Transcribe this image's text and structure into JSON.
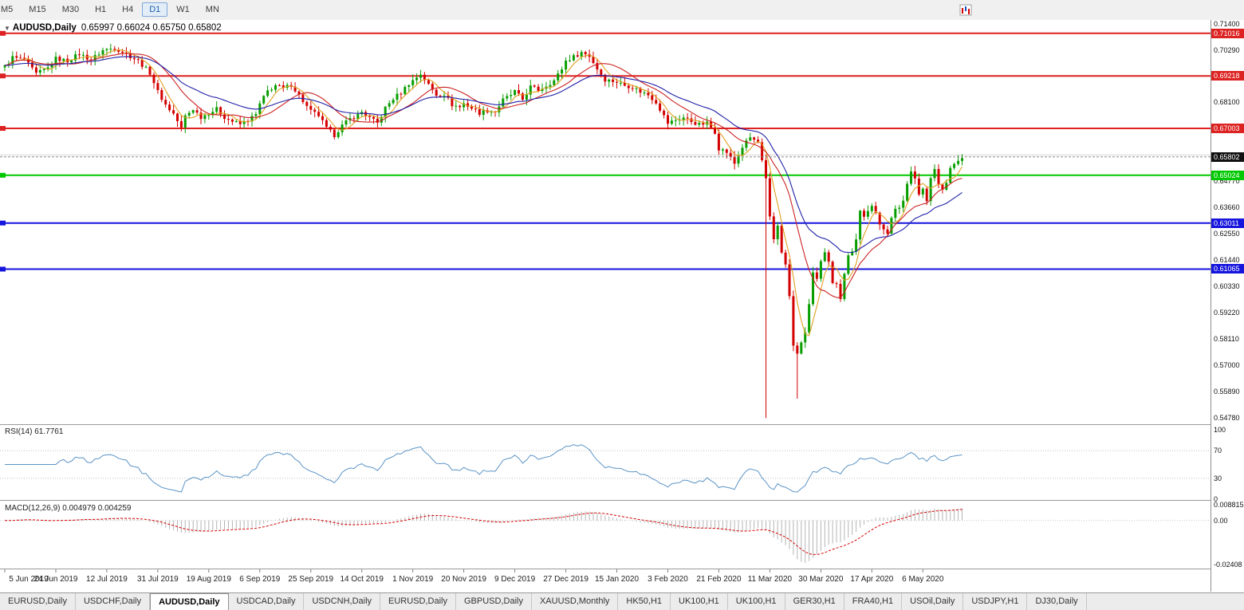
{
  "toolbar": {
    "timeframes": [
      "M5",
      "M15",
      "M30",
      "H1",
      "H4",
      "D1",
      "W1",
      "MN"
    ],
    "selected": "D1"
  },
  "chart": {
    "dropdown_icon": "▼",
    "title": "AUDUSD,Daily",
    "ohlc": "0.65997 0.66024 0.65750 0.65802"
  },
  "rsi_panel": {
    "label": "RSI(14) 61.7761",
    "axis": [
      {
        "v": 100,
        "label": "100"
      },
      {
        "v": 70,
        "label": "70"
      },
      {
        "v": 30,
        "label": "30"
      },
      {
        "v": 0,
        "label": "0"
      }
    ]
  },
  "macd_panel": {
    "label": "MACD(12,26,9) 0.004979 0.004259",
    "axis": [
      {
        "v": 0.008815,
        "label": "0.008815"
      },
      {
        "v": 0,
        "label": "0.00"
      },
      {
        "v": -0.02408,
        "label": "-0.02408"
      }
    ]
  },
  "tabs": {
    "items": [
      "EURUSD,Daily",
      "USDCHF,Daily",
      "AUDUSD,Daily",
      "USDCAD,Daily",
      "USDCNH,Daily",
      "EURUSD,Daily",
      "GBPUSD,Daily",
      "XAUUSD,Monthly",
      "HK50,H1",
      "UK100,H1",
      "UK100,H1",
      "GER30,H1",
      "FRA40,H1",
      "USOil,Daily",
      "USDJPY,H1",
      "DJ30,Daily"
    ],
    "selected_index": 2
  },
  "chart_data": {
    "type": "candlestick",
    "symbol": "AUDUSD",
    "timeframe": "Daily",
    "ylim": [
      0.5452,
      0.7158
    ],
    "bars": 245,
    "colors": {
      "bull": "#089e00",
      "bear": "#d40000",
      "rsi_line": "#5b93c5",
      "macd_hist": "#b4b4b4",
      "macd_signal": "#d40000",
      "bid_line": "#8c8c8c",
      "grid": "#d6d6d6"
    },
    "price_axis_labels": [
      {
        "v": 0.714,
        "label": "0.71400"
      },
      {
        "v": 0.7029,
        "label": "0.70290"
      },
      {
        "v": 0.681,
        "label": "0.68100"
      },
      {
        "v": 0.6477,
        "label": "0.64770"
      },
      {
        "v": 0.6366,
        "label": "0.63660"
      },
      {
        "v": 0.6255,
        "label": "0.62550"
      },
      {
        "v": 0.6144,
        "label": "0.61440"
      },
      {
        "v": 0.6033,
        "label": "0.60330"
      },
      {
        "v": 0.5922,
        "label": "0.59220"
      },
      {
        "v": 0.5811,
        "label": "0.58110"
      },
      {
        "v": 0.57,
        "label": "0.57000"
      },
      {
        "v": 0.5589,
        "label": "0.55890"
      },
      {
        "v": 0.5478,
        "label": "0.54780"
      }
    ],
    "hlines": [
      {
        "v": 0.71016,
        "label": "0.71016",
        "color": "#dd2222"
      },
      {
        "v": 0.69218,
        "label": "0.69218",
        "color": "#dd2222"
      },
      {
        "v": 0.67003,
        "label": "0.67003",
        "color": "#dd2222"
      },
      {
        "v": 0.65024,
        "label": "0.65024",
        "color": "#00c800"
      },
      {
        "v": 0.63011,
        "label": "0.63011",
        "color": "#1515dd"
      },
      {
        "v": 0.61065,
        "label": "0.61065",
        "color": "#1515dd"
      }
    ],
    "bid_line": {
      "v": 0.65802,
      "label": "0.65802"
    },
    "gridline": 0.6588,
    "x_labels": [
      {
        "i": 0,
        "label": "5 Jun 2019"
      },
      {
        "i": 13,
        "label": "24 Jun 2019"
      },
      {
        "i": 26,
        "label": "12 Jul 2019"
      },
      {
        "i": 39,
        "label": "31 Jul 2019"
      },
      {
        "i": 52,
        "label": "19 Aug 2019"
      },
      {
        "i": 65,
        "label": "6 Sep 2019"
      },
      {
        "i": 78,
        "label": "25 Sep 2019"
      },
      {
        "i": 91,
        "label": "14 Oct 2019"
      },
      {
        "i": 104,
        "label": "1 Nov 2019"
      },
      {
        "i": 117,
        "label": "20 Nov 2019"
      },
      {
        "i": 130,
        "label": "9 Dec 2019"
      },
      {
        "i": 143,
        "label": "27 Dec 2019"
      },
      {
        "i": 156,
        "label": "15 Jan 2020"
      },
      {
        "i": 169,
        "label": "3 Feb 2020"
      },
      {
        "i": 182,
        "label": "21 Feb 2020"
      },
      {
        "i": 195,
        "label": "11 Mar 2020"
      },
      {
        "i": 208,
        "label": "30 Mar 2020"
      },
      {
        "i": 221,
        "label": "17 Apr 2020"
      },
      {
        "i": 234,
        "label": "6 May 2020"
      }
    ],
    "close_anchors": [
      [
        0,
        0.696
      ],
      [
        2,
        0.7
      ],
      [
        5,
        0.699
      ],
      [
        8,
        0.693
      ],
      [
        11,
        0.6955
      ],
      [
        13,
        0.6995
      ],
      [
        16,
        0.6985
      ],
      [
        19,
        0.7015
      ],
      [
        22,
        0.699
      ],
      [
        25,
        0.703
      ],
      [
        28,
        0.704
      ],
      [
        31,
        0.7015
      ],
      [
        34,
        0.6985
      ],
      [
        37,
        0.6935
      ],
      [
        39,
        0.6855
      ],
      [
        41,
        0.68
      ],
      [
        43,
        0.6762
      ],
      [
        45,
        0.67
      ],
      [
        46,
        0.6752
      ],
      [
        48,
        0.6782
      ],
      [
        50,
        0.6748
      ],
      [
        52,
        0.6765
      ],
      [
        54,
        0.6782
      ],
      [
        56,
        0.6748
      ],
      [
        58,
        0.673
      ],
      [
        60,
        0.6718
      ],
      [
        62,
        0.6736
      ],
      [
        64,
        0.6758
      ],
      [
        65,
        0.6802
      ],
      [
        67,
        0.6858
      ],
      [
        69,
        0.6882
      ],
      [
        71,
        0.6868
      ],
      [
        73,
        0.6885
      ],
      [
        75,
        0.684
      ],
      [
        77,
        0.6792
      ],
      [
        78,
        0.6772
      ],
      [
        80,
        0.6755
      ],
      [
        82,
        0.67
      ],
      [
        84,
        0.6672
      ],
      [
        86,
        0.6712
      ],
      [
        88,
        0.674
      ],
      [
        90,
        0.6756
      ],
      [
        91,
        0.677
      ],
      [
        93,
        0.6744
      ],
      [
        95,
        0.6722
      ],
      [
        97,
        0.6786
      ],
      [
        99,
        0.6826
      ],
      [
        101,
        0.6852
      ],
      [
        103,
        0.689
      ],
      [
        104,
        0.6902
      ],
      [
        106,
        0.693
      ],
      [
        108,
        0.6884
      ],
      [
        110,
        0.6842
      ],
      [
        112,
        0.6846
      ],
      [
        114,
        0.68
      ],
      [
        116,
        0.679
      ],
      [
        117,
        0.6806
      ],
      [
        119,
        0.6786
      ],
      [
        121,
        0.6766
      ],
      [
        123,
        0.6776
      ],
      [
        125,
        0.677
      ],
      [
        127,
        0.682
      ],
      [
        129,
        0.6842
      ],
      [
        130,
        0.6856
      ],
      [
        132,
        0.6822
      ],
      [
        134,
        0.6876
      ],
      [
        136,
        0.6862
      ],
      [
        138,
        0.6882
      ],
      [
        140,
        0.6902
      ],
      [
        142,
        0.6952
      ],
      [
        143,
        0.6986
      ],
      [
        145,
        0.7002
      ],
      [
        147,
        0.7022
      ],
      [
        149,
        0.7006
      ],
      [
        151,
        0.6952
      ],
      [
        153,
        0.6906
      ],
      [
        155,
        0.69
      ],
      [
        156,
        0.6896
      ],
      [
        158,
        0.6882
      ],
      [
        160,
        0.6876
      ],
      [
        162,
        0.6856
      ],
      [
        164,
        0.6842
      ],
      [
        166,
        0.6812
      ],
      [
        168,
        0.6752
      ],
      [
        169,
        0.6722
      ],
      [
        171,
        0.6736
      ],
      [
        173,
        0.6746
      ],
      [
        175,
        0.673
      ],
      [
        177,
        0.6716
      ],
      [
        179,
        0.6722
      ],
      [
        181,
        0.6686
      ],
      [
        182,
        0.6616
      ],
      [
        184,
        0.66
      ],
      [
        186,
        0.6552
      ],
      [
        188,
        0.6622
      ],
      [
        190,
        0.6662
      ],
      [
        192,
        0.664
      ],
      [
        194,
        0.6482
      ],
      [
        195,
        0.6322
      ],
      [
        196,
        0.6232
      ],
      [
        197,
        0.6292
      ],
      [
        198,
        0.6182
      ],
      [
        199,
        0.6122
      ],
      [
        200,
        0.5992
      ],
      [
        201,
        0.5782
      ],
      [
        202,
        0.5746
      ],
      [
        203,
        0.5802
      ],
      [
        204,
        0.5832
      ],
      [
        205,
        0.5962
      ],
      [
        206,
        0.6092
      ],
      [
        207,
        0.6062
      ],
      [
        208,
        0.6132
      ],
      [
        209,
        0.6172
      ],
      [
        210,
        0.6132
      ],
      [
        211,
        0.6052
      ],
      [
        212,
        0.6052
      ],
      [
        213,
        0.5986
      ],
      [
        214,
        0.6082
      ],
      [
        215,
        0.6172
      ],
      [
        216,
        0.6186
      ],
      [
        217,
        0.6232
      ],
      [
        218,
        0.6352
      ],
      [
        219,
        0.6332
      ],
      [
        220,
        0.6346
      ],
      [
        221,
        0.6366
      ],
      [
        222,
        0.6342
      ],
      [
        223,
        0.6302
      ],
      [
        224,
        0.6282
      ],
      [
        225,
        0.6256
      ],
      [
        226,
        0.6316
      ],
      [
        227,
        0.6362
      ],
      [
        228,
        0.6372
      ],
      [
        229,
        0.6402
      ],
      [
        230,
        0.6462
      ],
      [
        231,
        0.6512
      ],
      [
        232,
        0.6492
      ],
      [
        233,
        0.6422
      ],
      [
        234,
        0.6446
      ],
      [
        235,
        0.6402
      ],
      [
        236,
        0.6492
      ],
      [
        237,
        0.6532
      ],
      [
        238,
        0.6462
      ],
      [
        239,
        0.6442
      ],
      [
        240,
        0.6466
      ],
      [
        241,
        0.6532
      ],
      [
        242,
        0.6548
      ],
      [
        243,
        0.6562
      ],
      [
        244,
        0.658
      ]
    ],
    "special_lows": [
      [
        194,
        0.5478
      ],
      [
        202,
        0.556
      ]
    ],
    "moving_averages": [
      {
        "period": 5,
        "type": "sma",
        "color": "#e0a020"
      },
      {
        "period": 13,
        "type": "sma",
        "color": "#cc2222"
      },
      {
        "period": 26,
        "type": "ema",
        "color": "#2020a8"
      }
    ],
    "rsi": {
      "period": 14,
      "value": 61.7761,
      "levels": [
        70,
        30
      ]
    },
    "macd": {
      "fast": 12,
      "slow": 26,
      "signal": 9,
      "value": 0.004979,
      "signal_value": 0.004259,
      "ylim": [
        -0.0265,
        0.0105
      ]
    }
  }
}
